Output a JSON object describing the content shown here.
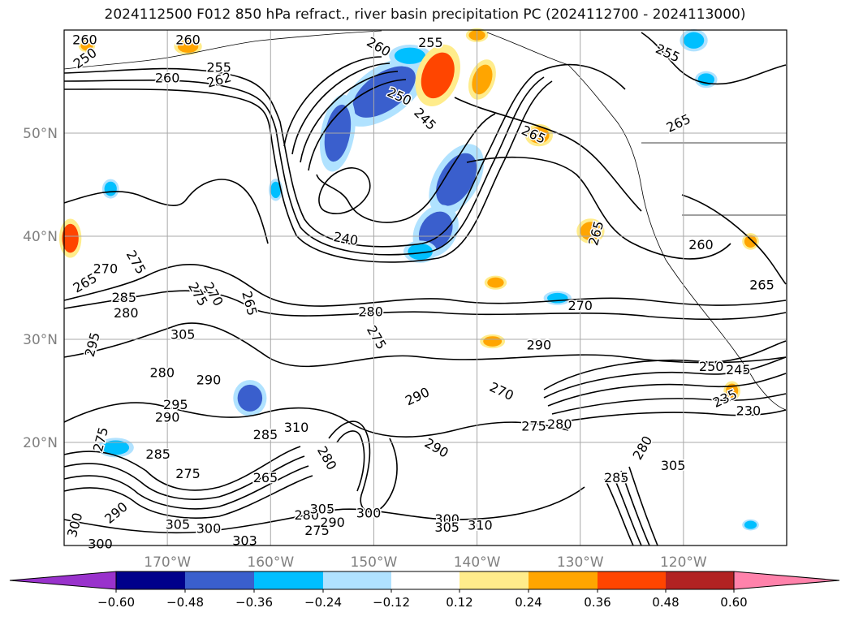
{
  "title": "2024112500 F012 850 hPa refract., river basin precipitation PC (2024112700 - 2024113000)",
  "map": {
    "lon_range": [
      -180,
      -110
    ],
    "lat_range": [
      10,
      60
    ],
    "lon_ticks": [
      {
        "value": -170,
        "label": "170°W"
      },
      {
        "value": -160,
        "label": "160°W"
      },
      {
        "value": -150,
        "label": "150°W"
      },
      {
        "value": -140,
        "label": "140°W"
      },
      {
        "value": -130,
        "label": "130°W"
      },
      {
        "value": -120,
        "label": "120°W"
      }
    ],
    "lat_ticks": [
      {
        "value": 20,
        "label": "20°N"
      },
      {
        "value": 30,
        "label": "30°N"
      },
      {
        "value": 40,
        "label": "40°N"
      },
      {
        "value": 50,
        "label": "50°N"
      }
    ],
    "grid": true,
    "tick_label_color": "#808080",
    "contour_labels": [
      {
        "text": "260",
        "lon": -178,
        "lat": 59.1,
        "rot": 0
      },
      {
        "text": "260",
        "lon": -168,
        "lat": 59.1,
        "rot": 0
      },
      {
        "text": "250",
        "lon": -178,
        "lat": 57.3,
        "rot": -35
      },
      {
        "text": "255",
        "lon": -165,
        "lat": 56.4,
        "rot": 0
      },
      {
        "text": "260",
        "lon": -170,
        "lat": 55.4,
        "rot": 0
      },
      {
        "text": "262",
        "lon": -165,
        "lat": 55.2,
        "rot": -15
      },
      {
        "text": "260",
        "lon": -149.5,
        "lat": 58.4,
        "rot": 30
      },
      {
        "text": "255",
        "lon": -144.5,
        "lat": 58.8,
        "rot": 0
      },
      {
        "text": "250",
        "lon": -147.5,
        "lat": 53.6,
        "rot": 25
      },
      {
        "text": "245",
        "lon": -145,
        "lat": 51.4,
        "rot": 45
      },
      {
        "text": "265",
        "lon": -134.5,
        "lat": 49.9,
        "rot": 25
      },
      {
        "text": "255",
        "lon": -121.5,
        "lat": 57.8,
        "rot": 25
      },
      {
        "text": "265",
        "lon": -120.5,
        "lat": 51,
        "rot": -25
      },
      {
        "text": "240",
        "lon": -152.7,
        "lat": 39.8,
        "rot": 10
      },
      {
        "text": "265",
        "lon": -128.5,
        "lat": 40.3,
        "rot": -75
      },
      {
        "text": "260",
        "lon": -118.3,
        "lat": 39.2,
        "rot": 0
      },
      {
        "text": "265",
        "lon": -112.4,
        "lat": 35.3,
        "rot": 0
      },
      {
        "text": "270",
        "lon": -176,
        "lat": 36.9,
        "rot": 0
      },
      {
        "text": "265",
        "lon": -178,
        "lat": 35.5,
        "rot": -30
      },
      {
        "text": "275",
        "lon": -173,
        "lat": 37.5,
        "rot": 60
      },
      {
        "text": "285",
        "lon": -174.2,
        "lat": 34.1,
        "rot": 0
      },
      {
        "text": "280",
        "lon": -174,
        "lat": 32.6,
        "rot": 0
      },
      {
        "text": "275",
        "lon": -167,
        "lat": 34.4,
        "rot": 60
      },
      {
        "text": "270",
        "lon": -165.5,
        "lat": 34.4,
        "rot": 60
      },
      {
        "text": "265",
        "lon": -162,
        "lat": 33.5,
        "rot": 75
      },
      {
        "text": "280",
        "lon": -150.3,
        "lat": 32.7,
        "rot": 0
      },
      {
        "text": "275",
        "lon": -149.7,
        "lat": 30.2,
        "rot": 60
      },
      {
        "text": "290",
        "lon": -134,
        "lat": 29.5,
        "rot": 0
      },
      {
        "text": "270",
        "lon": -130,
        "lat": 33.3,
        "rot": 0
      },
      {
        "text": "250",
        "lon": -117.3,
        "lat": 27.4,
        "rot": 0
      },
      {
        "text": "245",
        "lon": -114.7,
        "lat": 27.1,
        "rot": 0
      },
      {
        "text": "235",
        "lon": -116,
        "lat": 24.3,
        "rot": -25
      },
      {
        "text": "230",
        "lon": -113.7,
        "lat": 23.1,
        "rot": 0
      },
      {
        "text": "290",
        "lon": -145.8,
        "lat": 24.5,
        "rot": -25
      },
      {
        "text": "270",
        "lon": -137.6,
        "lat": 25,
        "rot": 25
      },
      {
        "text": "275",
        "lon": -134.5,
        "lat": 21.6,
        "rot": 0
      },
      {
        "text": "280",
        "lon": -132,
        "lat": 21.8,
        "rot": 0
      },
      {
        "text": "295",
        "lon": -177.3,
        "lat": 29.5,
        "rot": -75
      },
      {
        "text": "290",
        "lon": -166,
        "lat": 26.1,
        "rot": 0
      },
      {
        "text": "305",
        "lon": -168.5,
        "lat": 30.5,
        "rot": 0
      },
      {
        "text": "280",
        "lon": -170.5,
        "lat": 26.8,
        "rot": 0
      },
      {
        "text": "295",
        "lon": -169.2,
        "lat": 23.7,
        "rot": 0
      },
      {
        "text": "290",
        "lon": -170,
        "lat": 22.5,
        "rot": 0
      },
      {
        "text": "285",
        "lon": -160.5,
        "lat": 20.8,
        "rot": 0
      },
      {
        "text": "310",
        "lon": -157.5,
        "lat": 21.5,
        "rot": 0
      },
      {
        "text": "275",
        "lon": -176.5,
        "lat": 20.3,
        "rot": -75
      },
      {
        "text": "285",
        "lon": -170.9,
        "lat": 18.9,
        "rot": 0
      },
      {
        "text": "275",
        "lon": -168,
        "lat": 17,
        "rot": 0
      },
      {
        "text": "290",
        "lon": -175,
        "lat": 13.2,
        "rot": -40
      },
      {
        "text": "305",
        "lon": -169,
        "lat": 12.1,
        "rot": 0
      },
      {
        "text": "300",
        "lon": -166,
        "lat": 11.7,
        "rot": 0
      },
      {
        "text": "265",
        "lon": -160.5,
        "lat": 16.6,
        "rot": 0
      },
      {
        "text": "280",
        "lon": -156.5,
        "lat": 13,
        "rot": 0
      },
      {
        "text": "275",
        "lon": -155.5,
        "lat": 11.5,
        "rot": 0
      },
      {
        "text": "303",
        "lon": -162.5,
        "lat": 10.5,
        "rot": 0
      },
      {
        "text": "300",
        "lon": -176.5,
        "lat": 10.2,
        "rot": 0
      },
      {
        "text": "300",
        "lon": -179,
        "lat": 12,
        "rot": -75
      },
      {
        "text": "305",
        "lon": -155,
        "lat": 13.6,
        "rot": 0
      },
      {
        "text": "280",
        "lon": -154.5,
        "lat": 18.5,
        "rot": 60
      },
      {
        "text": "290",
        "lon": -154,
        "lat": 12.3,
        "rot": 0
      },
      {
        "text": "300",
        "lon": -150.5,
        "lat": 13.2,
        "rot": 0
      },
      {
        "text": "290",
        "lon": -143.9,
        "lat": 19.5,
        "rot": 30
      },
      {
        "text": "300",
        "lon": -142.9,
        "lat": 12.6,
        "rot": 0
      },
      {
        "text": "305",
        "lon": -142.9,
        "lat": 11.8,
        "rot": 0
      },
      {
        "text": "310",
        "lon": -139.7,
        "lat": 12,
        "rot": 0
      },
      {
        "text": "280",
        "lon": -124,
        "lat": 19.5,
        "rot": -60
      },
      {
        "text": "285",
        "lon": -126.5,
        "lat": 16.6,
        "rot": 0
      },
      {
        "text": "305",
        "lon": -121,
        "lat": 17.8,
        "rot": 0
      }
    ]
  },
  "colorbar": {
    "ticks": [
      "−0.60",
      "−0.48",
      "−0.36",
      "−0.24",
      "−0.12",
      "0.12",
      "0.24",
      "0.36",
      "0.48",
      "0.60"
    ],
    "colors": [
      "#9932cc",
      "#00008b",
      "#3a5fcd",
      "#00bfff",
      "#b0e2ff",
      "#ffffff",
      "#ffec8b",
      "#ffa500",
      "#ff4500",
      "#b22222",
      "#ff82ab"
    ]
  },
  "chart_data": {
    "type": "heatmap",
    "title": "2024112500 F012 850 hPa refract., river basin precipitation PC (2024112700 - 2024113000)",
    "x_ticks": [
      "170°W",
      "160°W",
      "150°W",
      "140°W",
      "130°W",
      "120°W"
    ],
    "y_ticks": [
      "20°N",
      "30°N",
      "40°N",
      "50°N"
    ],
    "color_levels": [
      -0.6,
      -0.48,
      -0.36,
      -0.24,
      -0.12,
      0.12,
      0.24,
      0.36,
      0.48,
      0.6
    ],
    "contour_values": [
      230,
      235,
      240,
      245,
      250,
      255,
      260,
      262,
      265,
      270,
      275,
      280,
      285,
      290,
      295,
      300,
      303,
      305,
      310
    ],
    "blobs": [
      {
        "lon": -149.0,
        "lat": 54.0,
        "rx": 3.5,
        "ry": 1.8,
        "value": -0.4,
        "rot": -35
      },
      {
        "lon": -153.5,
        "lat": 50.0,
        "rx": 1.2,
        "ry": 2.8,
        "value": -0.4,
        "rot": 10
      },
      {
        "lon": -146.5,
        "lat": 57.5,
        "rx": 1.5,
        "ry": 0.8,
        "value": -0.3,
        "rot": 0
      },
      {
        "lon": -142.0,
        "lat": 45.5,
        "rx": 1.6,
        "ry": 2.8,
        "value": -0.45,
        "rot": 30
      },
      {
        "lon": -144.0,
        "lat": 40.5,
        "rx": 1.5,
        "ry": 2.0,
        "value": -0.4,
        "rot": 30
      },
      {
        "lon": -145.5,
        "lat": 38.5,
        "rx": 1.2,
        "ry": 0.8,
        "value": -0.35,
        "rot": 0
      },
      {
        "lon": -143.8,
        "lat": 55.6,
        "rx": 1.5,
        "ry": 2.3,
        "value": 0.45,
        "rot": 20
      },
      {
        "lon": -139.5,
        "lat": 55.2,
        "rx": 0.9,
        "ry": 1.5,
        "value": 0.3,
        "rot": 20
      },
      {
        "lon": -134.0,
        "lat": 49.8,
        "rx": 1.0,
        "ry": 0.8,
        "value": 0.25,
        "rot": 0
      },
      {
        "lon": -138.2,
        "lat": 35.5,
        "rx": 0.8,
        "ry": 0.5,
        "value": 0.28,
        "rot": 0
      },
      {
        "lon": -129.0,
        "lat": 40.5,
        "rx": 1.0,
        "ry": 0.9,
        "value": 0.3,
        "rot": 0
      },
      {
        "lon": -162.0,
        "lat": 24.3,
        "rx": 1.2,
        "ry": 1.3,
        "value": -0.4,
        "rot": 0
      },
      {
        "lon": -175.0,
        "lat": 19.5,
        "rx": 1.3,
        "ry": 0.7,
        "value": -0.3,
        "rot": 0
      },
      {
        "lon": -168.0,
        "lat": 58.4,
        "rx": 1.0,
        "ry": 0.6,
        "value": 0.3,
        "rot": 0
      },
      {
        "lon": -159.5,
        "lat": 44.5,
        "rx": 0.5,
        "ry": 0.8,
        "value": -0.25,
        "rot": 0
      },
      {
        "lon": -175.5,
        "lat": 44.6,
        "rx": 0.6,
        "ry": 0.7,
        "value": -0.25,
        "rot": 0
      },
      {
        "lon": -179.4,
        "lat": 39.8,
        "rx": 0.8,
        "ry": 1.4,
        "value": 0.42,
        "rot": 0
      },
      {
        "lon": -117.8,
        "lat": 55.2,
        "rx": 0.8,
        "ry": 0.6,
        "value": -0.3,
        "rot": 0
      },
      {
        "lon": -132.2,
        "lat": 34.0,
        "rx": 1.0,
        "ry": 0.5,
        "value": -0.3,
        "rot": 0
      },
      {
        "lon": -115.3,
        "lat": 25.0,
        "rx": 0.6,
        "ry": 0.7,
        "value": 0.35,
        "rot": 0
      },
      {
        "lon": -138.5,
        "lat": 29.8,
        "rx": 0.9,
        "ry": 0.5,
        "value": 0.25,
        "rot": 0
      },
      {
        "lon": -140.0,
        "lat": 59.5,
        "rx": 0.8,
        "ry": 0.5,
        "value": 0.25,
        "rot": 0
      },
      {
        "lon": -113.5,
        "lat": 39.5,
        "rx": 0.6,
        "ry": 0.6,
        "value": 0.25,
        "rot": 0
      },
      {
        "lon": -177.8,
        "lat": 58.5,
        "rx": 0.6,
        "ry": 0.5,
        "value": 0.3,
        "rot": 0
      },
      {
        "lon": -113.5,
        "lat": 12.0,
        "rx": 0.6,
        "ry": 0.4,
        "value": -0.25,
        "rot": 0
      },
      {
        "lon": -119.0,
        "lat": 59.0,
        "rx": 1.0,
        "ry": 0.8,
        "value": -0.35,
        "rot": 0
      }
    ]
  }
}
